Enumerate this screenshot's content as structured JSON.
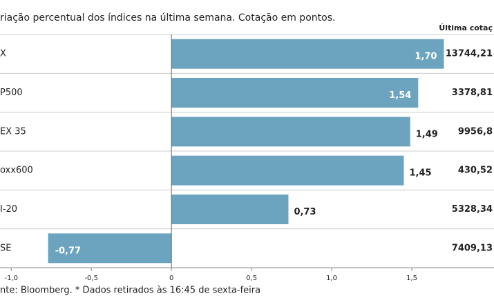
{
  "chart_data": {
    "type": "barh",
    "title": "riação percentual dos índices na última semana. Cotação em pontos.",
    "categories": [
      "X",
      "P500",
      "EX 35",
      "oxx600",
      "I-20",
      "SE"
    ],
    "values": [
      1.7,
      1.54,
      1.49,
      1.45,
      0.73,
      -0.77
    ],
    "value_labels": [
      "1,70",
      "1,54",
      "1,49",
      "1,45",
      "0,73",
      "-0,77"
    ],
    "color": "#6ca3bf",
    "xlim": [
      -1.07,
      2.0
    ],
    "xticks": [
      {
        "value": -1.0,
        "label": "-1,0"
      },
      {
        "value": -0.5,
        "label": "-0,5"
      },
      0,
      {
        "value": 0.5,
        "label": "0,5"
      },
      {
        "value": 1.0,
        "label": "1,0"
      },
      {
        "value": 1.5,
        "label": "1,5"
      }
    ],
    "last_quote_header": "Última cotaç",
    "last_quote": [
      "13744,21",
      "3378,81",
      "9956,8",
      "430,52",
      "5328,34",
      "7409,13"
    ],
    "source": "nte: Bloomberg.  * Dados retirados às 16:45 de sexta-feira"
  }
}
